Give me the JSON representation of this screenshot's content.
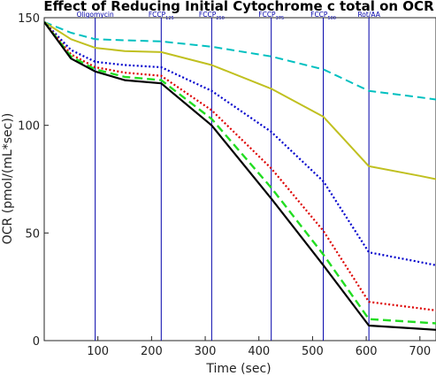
{
  "chart_data": {
    "type": "line",
    "title": "Effect of Reducing Initial Cytochrome c total on OCR",
    "xlabel": "Time (sec)",
    "ylabel": "OCR (pmol/(mL*sec))",
    "xlim": [
      0,
      730
    ],
    "ylim": [
      0,
      150
    ],
    "xticks": [
      100,
      200,
      300,
      400,
      500,
      600,
      700
    ],
    "yticks": [
      0,
      50,
      100,
      150
    ],
    "grid": false,
    "legend": "none",
    "events": [
      {
        "label": "Oligomycin",
        "sub": "",
        "x": 95
      },
      {
        "label": "FCCP",
        "sub": "125",
        "x": 218
      },
      {
        "label": "FCCP",
        "sub": "250",
        "x": 312
      },
      {
        "label": "FCCP",
        "sub": "375",
        "x": 423
      },
      {
        "label": "FCCP",
        "sub": "500",
        "x": 520
      },
      {
        "label": "Rot/AA",
        "sub": "",
        "x": 605
      }
    ],
    "event_color": "#0000aa",
    "series": [
      {
        "color": "#00c0c0",
        "style": "dashed",
        "width": 2,
        "x": [
          0,
          50,
          95,
          150,
          218,
          312,
          423,
          520,
          605,
          700,
          730
        ],
        "y": [
          148,
          143,
          140,
          139.5,
          139,
          136.5,
          132,
          126,
          116,
          113,
          112
        ]
      },
      {
        "color": "#c0c020",
        "style": "solid",
        "width": 2,
        "x": [
          0,
          50,
          95,
          150,
          218,
          312,
          423,
          520,
          605,
          700,
          730
        ],
        "y": [
          148,
          140,
          136,
          134.5,
          134,
          128,
          117,
          104,
          81,
          76.5,
          75
        ]
      },
      {
        "color": "#0000cc",
        "style": "dotted",
        "width": 2.2,
        "x": [
          0,
          50,
          95,
          150,
          218,
          312,
          423,
          520,
          605,
          700,
          730
        ],
        "y": [
          148,
          135,
          129.5,
          128,
          127,
          116,
          97,
          74,
          41,
          36.5,
          35
        ]
      },
      {
        "color": "#dd0000",
        "style": "dotted",
        "width": 2.2,
        "x": [
          0,
          50,
          95,
          150,
          218,
          312,
          423,
          520,
          605,
          700,
          730
        ],
        "y": [
          148,
          133,
          127,
          124.5,
          123,
          107,
          80,
          51,
          18,
          15,
          14
        ]
      },
      {
        "color": "#22dd22",
        "style": "dashed",
        "width": 2.4,
        "x": [
          0,
          50,
          95,
          150,
          218,
          312,
          423,
          520,
          605,
          700,
          730
        ],
        "y": [
          148,
          132,
          126,
          122.5,
          121,
          103,
          71,
          40,
          10,
          8.5,
          8
        ]
      },
      {
        "color": "#000000",
        "style": "solid",
        "width": 2.2,
        "x": [
          0,
          50,
          95,
          150,
          218,
          312,
          423,
          520,
          605,
          700,
          730
        ],
        "y": [
          148,
          131,
          125,
          121,
          119.5,
          100,
          66,
          35,
          7,
          5.5,
          5
        ]
      }
    ]
  }
}
